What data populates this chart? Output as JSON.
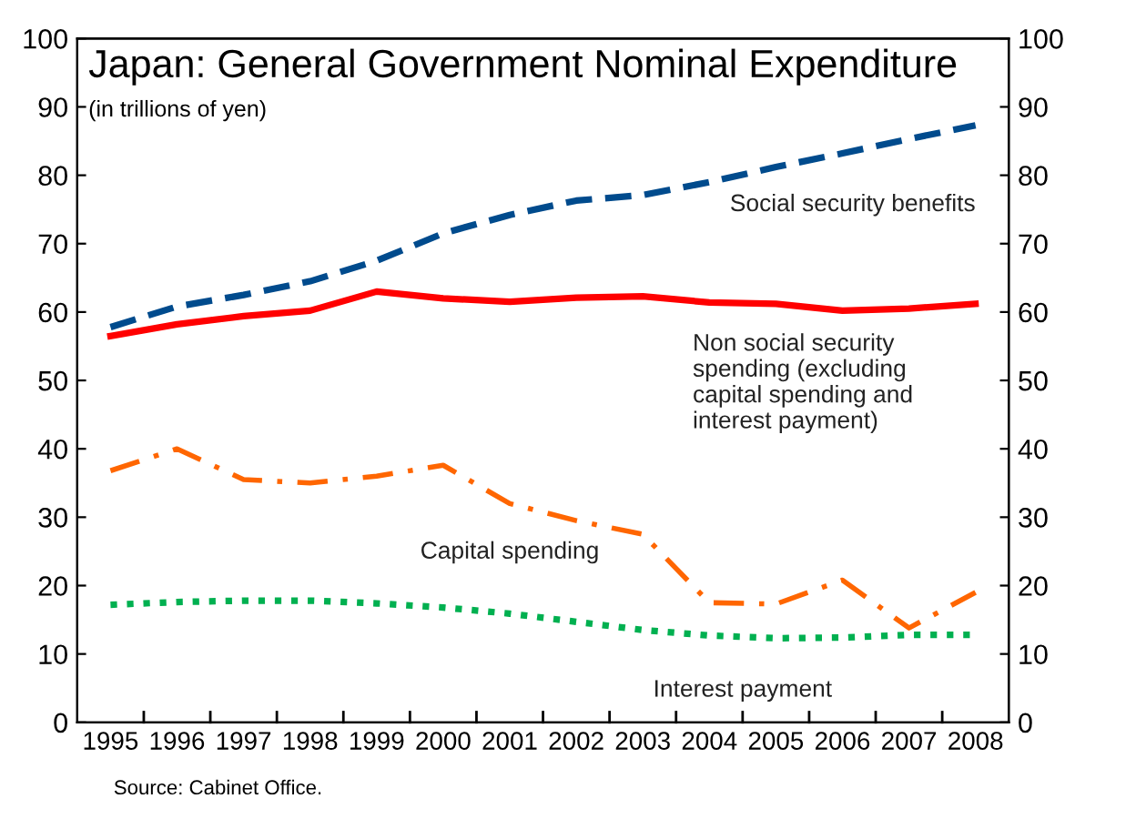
{
  "chart_data": {
    "type": "line",
    "title": "Japan: General Government Nominal Expenditure",
    "subtitle": "(in trillions of yen)",
    "categories": [
      "1995",
      "1996",
      "1997",
      "1998",
      "1999",
      "2000",
      "2001",
      "2002",
      "2003",
      "2004",
      "2005",
      "2006",
      "2007",
      "2008"
    ],
    "series": [
      {
        "name": "Social security benefits",
        "color": "#004b8d",
        "line_style": "dashed",
        "values": [
          57.8,
          60.8,
          62.5,
          64.5,
          67.5,
          71.5,
          74.2,
          76.3,
          77.1,
          79,
          81.2,
          83.2,
          85.3,
          87.3
        ]
      },
      {
        "name": "Non social security spending (excluding capital spending and interest payment)",
        "color": "#ff0000",
        "line_style": "solid",
        "values": [
          56.5,
          58.2,
          59.4,
          60.2,
          63,
          62,
          61.5,
          62.1,
          62.3,
          61.4,
          61.2,
          60.2,
          60.5,
          61.2
        ]
      },
      {
        "name": "Capital spending",
        "color": "#ff6600",
        "line_style": "dashdot",
        "values": [
          36.8,
          40,
          35.5,
          35,
          36,
          37.6,
          32,
          29.5,
          27.5,
          17.5,
          17.3,
          20.8,
          13.8,
          19
        ]
      },
      {
        "name": "Interest payment",
        "color": "#00b050",
        "line_style": "dotted",
        "values": [
          17.2,
          17.6,
          17.8,
          17.8,
          17.4,
          16.8,
          15.9,
          14.7,
          13.5,
          12.7,
          12.3,
          12.4,
          12.8,
          12.8
        ]
      }
    ],
    "ylim": [
      0,
      100
    ],
    "yticks": [
      0,
      10,
      20,
      30,
      40,
      50,
      60,
      70,
      80,
      90,
      100
    ],
    "y2lim": [
      0,
      100
    ],
    "y2ticks": [
      0,
      10,
      20,
      30,
      40,
      50,
      60,
      70,
      80,
      90,
      100
    ],
    "grid": false,
    "legend": false,
    "annotations": [
      "Source: Cabinet Office."
    ]
  }
}
